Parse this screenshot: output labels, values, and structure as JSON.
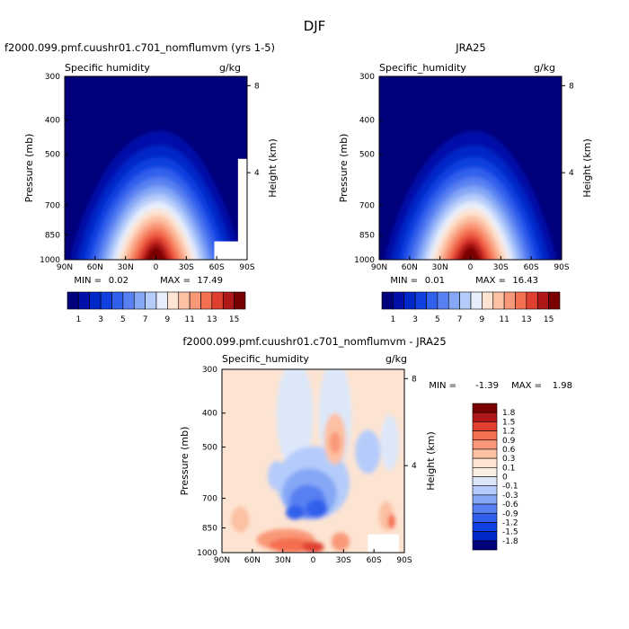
{
  "figure_title": "DJF",
  "chart_data": [
    {
      "type": "heatmap",
      "title": "f2000.099.pmf.cuushr01.c701_nomflumvm (yrs 1-5)",
      "field_label": "Specific humidity",
      "units": "g/kg",
      "ylabel": "Pressure (mb)",
      "y2label": "Height (km)",
      "x_ticks": [
        "90N",
        "60N",
        "30N",
        "0",
        "30S",
        "60S",
        "90S"
      ],
      "y_ticks": [
        "300",
        "400",
        "500",
        "700",
        "850",
        "1000"
      ],
      "y2_ticks": [
        "8",
        "4"
      ],
      "ylim": [
        300,
        1000
      ],
      "xlim": [
        "90N",
        "90S"
      ],
      "min_label": "MIN =",
      "min_value": "0.02",
      "max_label": "MAX =",
      "max_value": "17.49",
      "levels": [
        1,
        2,
        3,
        4,
        5,
        6,
        7,
        8,
        9,
        10,
        11,
        12,
        13,
        14,
        15
      ],
      "colorbar_labels": [
        "1",
        "3",
        "5",
        "7",
        "9",
        "11",
        "13",
        "15"
      ],
      "peak_value": 17.49,
      "peak_location": {
        "lat": "0",
        "pressure": 1000
      }
    },
    {
      "type": "heatmap",
      "title": "JRA25",
      "field_label": "Specific_humidity",
      "units": "g/kg",
      "ylabel": "Pressure (mb)",
      "y2label": "Height (km)",
      "x_ticks": [
        "90N",
        "60N",
        "30N",
        "0",
        "30S",
        "60S",
        "90S"
      ],
      "y_ticks": [
        "300",
        "400",
        "500",
        "700",
        "850",
        "1000"
      ],
      "y2_ticks": [
        "8",
        "4"
      ],
      "ylim": [
        300,
        1000
      ],
      "xlim": [
        "90N",
        "90S"
      ],
      "min_label": "MIN =",
      "min_value": "0.01",
      "max_label": "MAX =",
      "max_value": "16.43",
      "levels": [
        1,
        2,
        3,
        4,
        5,
        6,
        7,
        8,
        9,
        10,
        11,
        12,
        13,
        14,
        15
      ],
      "colorbar_labels": [
        "1",
        "3",
        "5",
        "7",
        "9",
        "11",
        "13",
        "15"
      ],
      "peak_value": 16.43,
      "peak_location": {
        "lat": "0",
        "pressure": 1000
      }
    },
    {
      "type": "heatmap",
      "title": "f2000.099.pmf.cuushr01.c701_nomflumvm - JRA25",
      "field_label": "Specific_humidity",
      "units": "g/kg",
      "ylabel": "Pressure (mb)",
      "y2label": "Height (km)",
      "x_ticks": [
        "90N",
        "60N",
        "30N",
        "0",
        "30S",
        "60S",
        "90S"
      ],
      "y_ticks": [
        "300",
        "400",
        "500",
        "700",
        "850",
        "1000"
      ],
      "y2_ticks": [
        "8",
        "4"
      ],
      "ylim": [
        300,
        1000
      ],
      "xlim": [
        "90N",
        "90S"
      ],
      "min_label": "MIN =",
      "min_value": "-1.39",
      "max_label": "MAX =",
      "max_value": "1.98",
      "levels": [
        -1.8,
        -1.5,
        -1.2,
        -0.9,
        -0.6,
        -0.3,
        -0.1,
        0,
        0.1,
        0.3,
        0.6,
        0.9,
        1.2,
        1.5,
        1.8
      ],
      "colorbar_labels": [
        "1.8",
        "1.5",
        "1.2",
        "0.9",
        "0.6",
        "0.3",
        "0.1",
        "0",
        "-0.1",
        "-0.3",
        "-0.6",
        "-0.9",
        "-1.2",
        "-1.5",
        "-1.8"
      ]
    }
  ],
  "colors": {
    "humidity_scale": [
      "#00007a",
      "#0010a8",
      "#0028c8",
      "#1040e0",
      "#3060ec",
      "#5880f2",
      "#85a8f6",
      "#b5ccfa",
      "#e6eefc",
      "#fde4d2",
      "#fcc0a2",
      "#f99878",
      "#f46e50",
      "#e04030",
      "#b01818",
      "#780000"
    ],
    "difference_scale": [
      "#780000",
      "#b01818",
      "#e04030",
      "#f46e50",
      "#f99878",
      "#fcc0a2",
      "#fde4d2",
      "#fdeee2",
      "#dce8fa",
      "#b5ccfa",
      "#85a8f6",
      "#5880f2",
      "#3060ec",
      "#1040e0",
      "#0028c8",
      "#00007a"
    ]
  }
}
